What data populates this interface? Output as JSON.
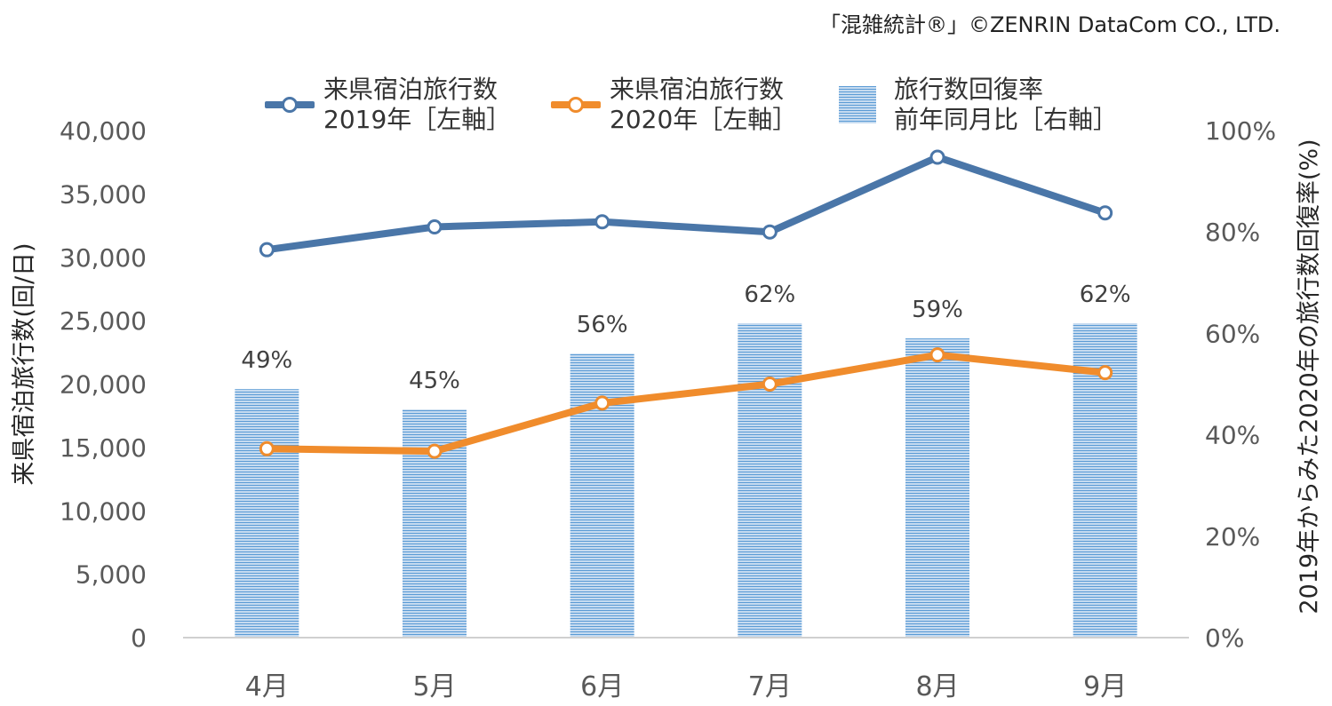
{
  "credit": "「混雑統計®」©ZENRIN DataCom CO., LTD.",
  "colors": {
    "series2019": "#4a76a8",
    "series2020": "#f08c2c",
    "bars": "#5b9bd5",
    "axis": "#d0d0d0",
    "text": "#595959"
  },
  "legend": {
    "series2019": "来県宿泊旅行数\n2019年［左軸］",
    "series2020": "来県宿泊旅行数\n2020年［左軸］",
    "bars": "旅行数回復率\n前年同月比［右軸］"
  },
  "chart_data": {
    "type": "bar",
    "categories": [
      "4月",
      "5月",
      "6月",
      "7月",
      "8月",
      "9月"
    ],
    "ylabel": "来県宿泊旅行数(回/日)",
    "y2label": "2019年からみた2020年の旅行数回復率(%)",
    "ylim": [
      0,
      40000
    ],
    "y2lim": [
      0,
      100
    ],
    "yticks": [
      "0",
      "5,000",
      "10,000",
      "15,000",
      "20,000",
      "25,000",
      "30,000",
      "35,000",
      "40,000"
    ],
    "y2ticks": [
      "0%",
      "20%",
      "40%",
      "60%",
      "80%",
      "100%"
    ],
    "legend_position": "top",
    "series": [
      {
        "name": "来県宿泊旅行数 2019年［左軸］",
        "kind": "line",
        "axis": "left",
        "values": [
          30600,
          32400,
          32800,
          32000,
          37900,
          33500
        ]
      },
      {
        "name": "来県宿泊旅行数 2020年［左軸］",
        "kind": "line",
        "axis": "left",
        "values": [
          14900,
          14700,
          18500,
          20000,
          22300,
          20900
        ]
      },
      {
        "name": "旅行数回復率 前年同月比［右軸］",
        "kind": "bar",
        "axis": "right",
        "values": [
          49,
          45,
          56,
          62,
          59,
          62
        ],
        "labels": [
          "49%",
          "45%",
          "56%",
          "62%",
          "59%",
          "62%"
        ]
      }
    ]
  }
}
